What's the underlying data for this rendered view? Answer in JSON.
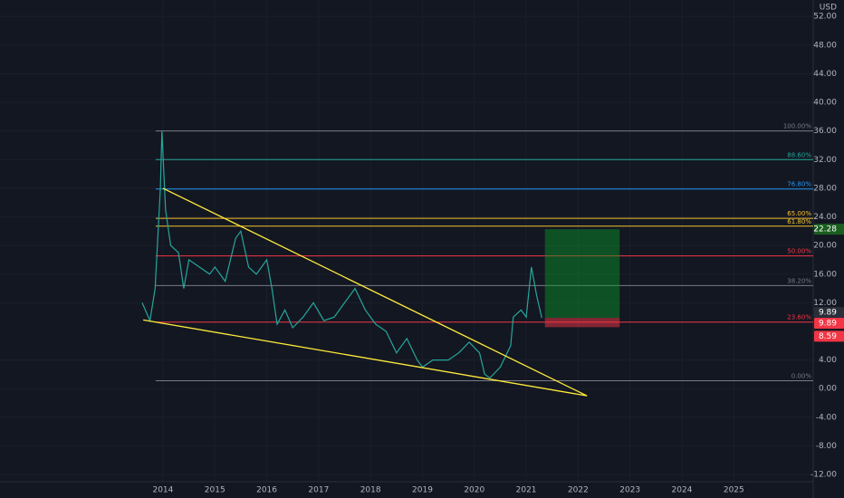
{
  "chart_data": {
    "type": "line",
    "currency": "USD",
    "x": [
      2013.6,
      2013.75,
      2013.85,
      2013.95,
      2013.98,
      2014.05,
      2014.15,
      2014.3,
      2014.4,
      2014.5,
      2014.7,
      2014.9,
      2015.0,
      2015.2,
      2015.4,
      2015.5,
      2015.65,
      2015.8,
      2016.0,
      2016.1,
      2016.2,
      2016.35,
      2016.5,
      2016.7,
      2016.9,
      2017.1,
      2017.3,
      2017.5,
      2017.7,
      2017.9,
      2018.1,
      2018.3,
      2018.5,
      2018.7,
      2018.9,
      2019.0,
      2019.2,
      2019.5,
      2019.7,
      2019.9,
      2020.1,
      2020.2,
      2020.3,
      2020.5,
      2020.7,
      2020.75,
      2020.9,
      2021.0,
      2021.1,
      2021.2,
      2021.3
    ],
    "series": [
      {
        "color": "#26a69a",
        "values": [
          12,
          9.5,
          14,
          28,
          36,
          25,
          20,
          19,
          14,
          18,
          17,
          16,
          17,
          15,
          21,
          22,
          17,
          16,
          18,
          14,
          9,
          11,
          8.5,
          10,
          12,
          9.5,
          10,
          12,
          14,
          11,
          9,
          8,
          5,
          7,
          4,
          3,
          4,
          4,
          5,
          6.5,
          5,
          2,
          1.5,
          3,
          6,
          10,
          11,
          10,
          17,
          13,
          9.89
        ]
      }
    ],
    "xlim": [
      2010.86,
      2026.53
    ],
    "ylim": [
      -13,
      54.3
    ],
    "xticks": [
      2014,
      2015,
      2016,
      2017,
      2018,
      2019,
      2020,
      2021,
      2022,
      2023,
      2024,
      2025
    ],
    "yticks": [
      {
        "value": 52,
        "label": "52.00"
      },
      {
        "value": 48,
        "label": "48.00"
      },
      {
        "value": 44,
        "label": "44.00"
      },
      {
        "value": 40,
        "label": "40.00"
      },
      {
        "value": 36,
        "label": "36.00"
      },
      {
        "value": 32,
        "label": "32.00"
      },
      {
        "value": 28,
        "label": "28.00"
      },
      {
        "value": 24,
        "label": "24.00"
      },
      {
        "value": 20,
        "label": "20.00"
      },
      {
        "value": 16,
        "label": "16.00"
      },
      {
        "value": 12,
        "label": "12.00"
      },
      {
        "value": 4,
        "label": "4.00"
      },
      {
        "value": 0,
        "label": "0.00"
      },
      {
        "value": -4,
        "label": "-4.00"
      },
      {
        "value": -8,
        "label": "-8.00"
      },
      {
        "value": -12,
        "label": "-12.00"
      }
    ],
    "grid": true,
    "fib_start": 2013.86,
    "fib_levels": [
      {
        "value": 36,
        "label": "100.00%",
        "color": "#787b86"
      },
      {
        "value": 32,
        "label": "88.60%",
        "color": "#26a69a"
      },
      {
        "value": 27.9,
        "label": "76.80%",
        "color": "#2196f3"
      },
      {
        "value": 23.8,
        "label": "65.00%",
        "color": "#fbc02d"
      },
      {
        "value": 22.7,
        "label": "61.80%",
        "color": "#f0c22a"
      },
      {
        "value": 18.55,
        "label": "50.00%",
        "color": "#f23645"
      },
      {
        "value": 14.4,
        "label": "38.20%",
        "color": "#787b86"
      },
      {
        "value": 9.3,
        "label": "23.60%",
        "color": "#f23645"
      },
      {
        "value": 1.1,
        "label": "0.00%",
        "color": "#787b86"
      }
    ],
    "trendlines": [
      {
        "x": [
          2014.0,
          2022.17
        ],
        "values": [
          28,
          -1
        ],
        "color": "#ffeb3b"
      },
      {
        "x": [
          2013.62,
          2022.17
        ],
        "values": [
          9.6,
          -1
        ],
        "color": "#ffeb3b"
      }
    ],
    "position": {
      "x": [
        2021.36,
        2022.8
      ],
      "target": 22.28,
      "entry": 9.89,
      "stop": 8.59
    },
    "price_tags": [
      {
        "value": 22.28,
        "label": "22.28",
        "color": "#1b5e20"
      },
      {
        "value": 9.89,
        "label": "9.89",
        "color": "#2a2e39"
      },
      {
        "value": 9.89,
        "label": "9.89",
        "color": "#f23645"
      },
      {
        "value": 8.59,
        "label": "8.59",
        "color": "#f23645"
      }
    ]
  }
}
